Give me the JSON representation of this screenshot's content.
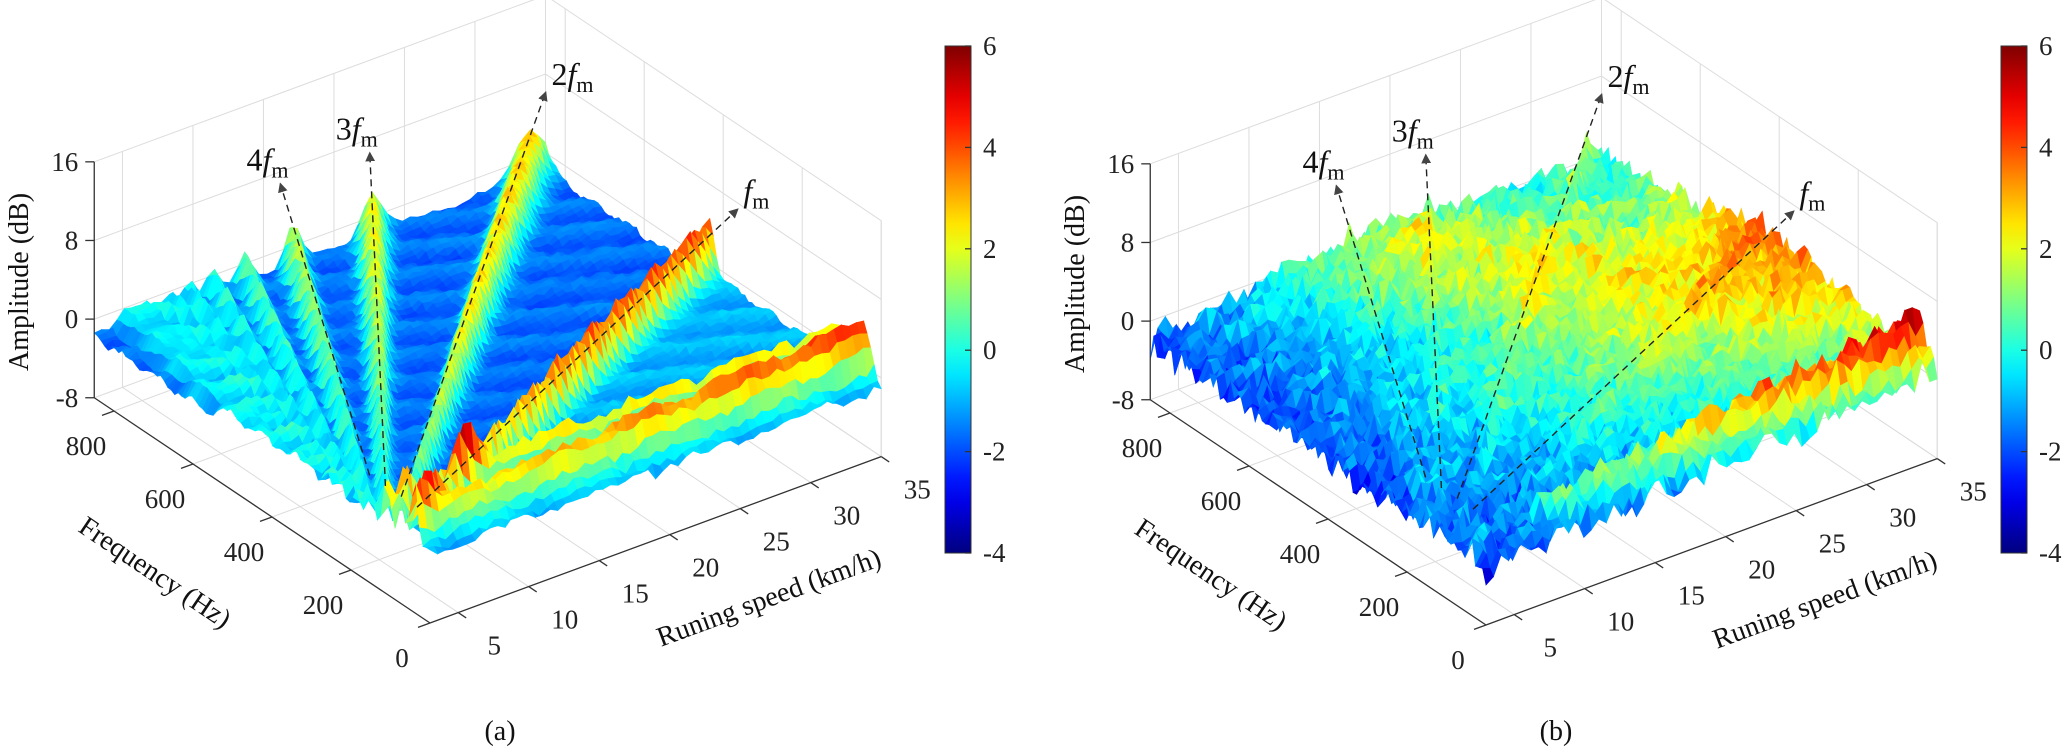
{
  "chart_data": [
    {
      "type": "surface",
      "panel_label": "(a)",
      "grid": true,
      "x_axis": {
        "label": "Runing speed (km/h)",
        "range": [
          3,
          35
        ],
        "ticks": [
          "5",
          "10",
          "15",
          "20",
          "25",
          "30",
          "35"
        ]
      },
      "y_axis": {
        "label": "Frequency (Hz)",
        "range": [
          0,
          850
        ],
        "ticks": [
          "0",
          "200",
          "400",
          "600",
          "800"
        ]
      },
      "z_axis": {
        "label": "Amplitude (dB)",
        "range": [
          -8,
          16
        ],
        "ticks": [
          "-8",
          "0",
          "8",
          "16"
        ]
      },
      "colorbar": {
        "colormap": "jet",
        "range": [
          -4,
          6
        ],
        "ticks": [
          "-4",
          "-2",
          "0",
          "2",
          "4",
          "6"
        ]
      },
      "annotations": [
        {
          "harmonic": 4,
          "prefix": "4",
          "symbol": "f",
          "subscript": "m"
        },
        {
          "harmonic": 3,
          "prefix": "3",
          "symbol": "f",
          "subscript": "m"
        },
        {
          "harmonic": 2,
          "prefix": "2",
          "symbol": "f",
          "subscript": "m"
        },
        {
          "harmonic": 1,
          "prefix": "",
          "symbol": "f",
          "subscript": "m"
        }
      ]
    },
    {
      "type": "surface",
      "panel_label": "(b)",
      "grid": true,
      "x_axis": {
        "label": "Runing speed (km/h)",
        "range": [
          3,
          35
        ],
        "ticks": [
          "5",
          "10",
          "15",
          "20",
          "25",
          "30",
          "35"
        ]
      },
      "y_axis": {
        "label": "Frequency (Hz)",
        "range": [
          0,
          850
        ],
        "ticks": [
          "0",
          "200",
          "400",
          "600",
          "800"
        ]
      },
      "z_axis": {
        "label": "Amplitude (dB)",
        "range": [
          -8,
          16
        ],
        "ticks": [
          "-8",
          "0",
          "8",
          "16"
        ]
      },
      "colorbar": {
        "colormap": "jet",
        "range": [
          -4,
          6
        ],
        "ticks": [
          "-4",
          "-2",
          "0",
          "2",
          "4",
          "6"
        ]
      },
      "annotations": [
        {
          "harmonic": 4,
          "prefix": "4",
          "symbol": "f",
          "subscript": "m"
        },
        {
          "harmonic": 3,
          "prefix": "3",
          "symbol": "f",
          "subscript": "m"
        },
        {
          "harmonic": 2,
          "prefix": "2",
          "symbol": "f",
          "subscript": "m"
        },
        {
          "harmonic": 1,
          "prefix": "",
          "symbol": "f",
          "subscript": "m"
        }
      ]
    }
  ]
}
